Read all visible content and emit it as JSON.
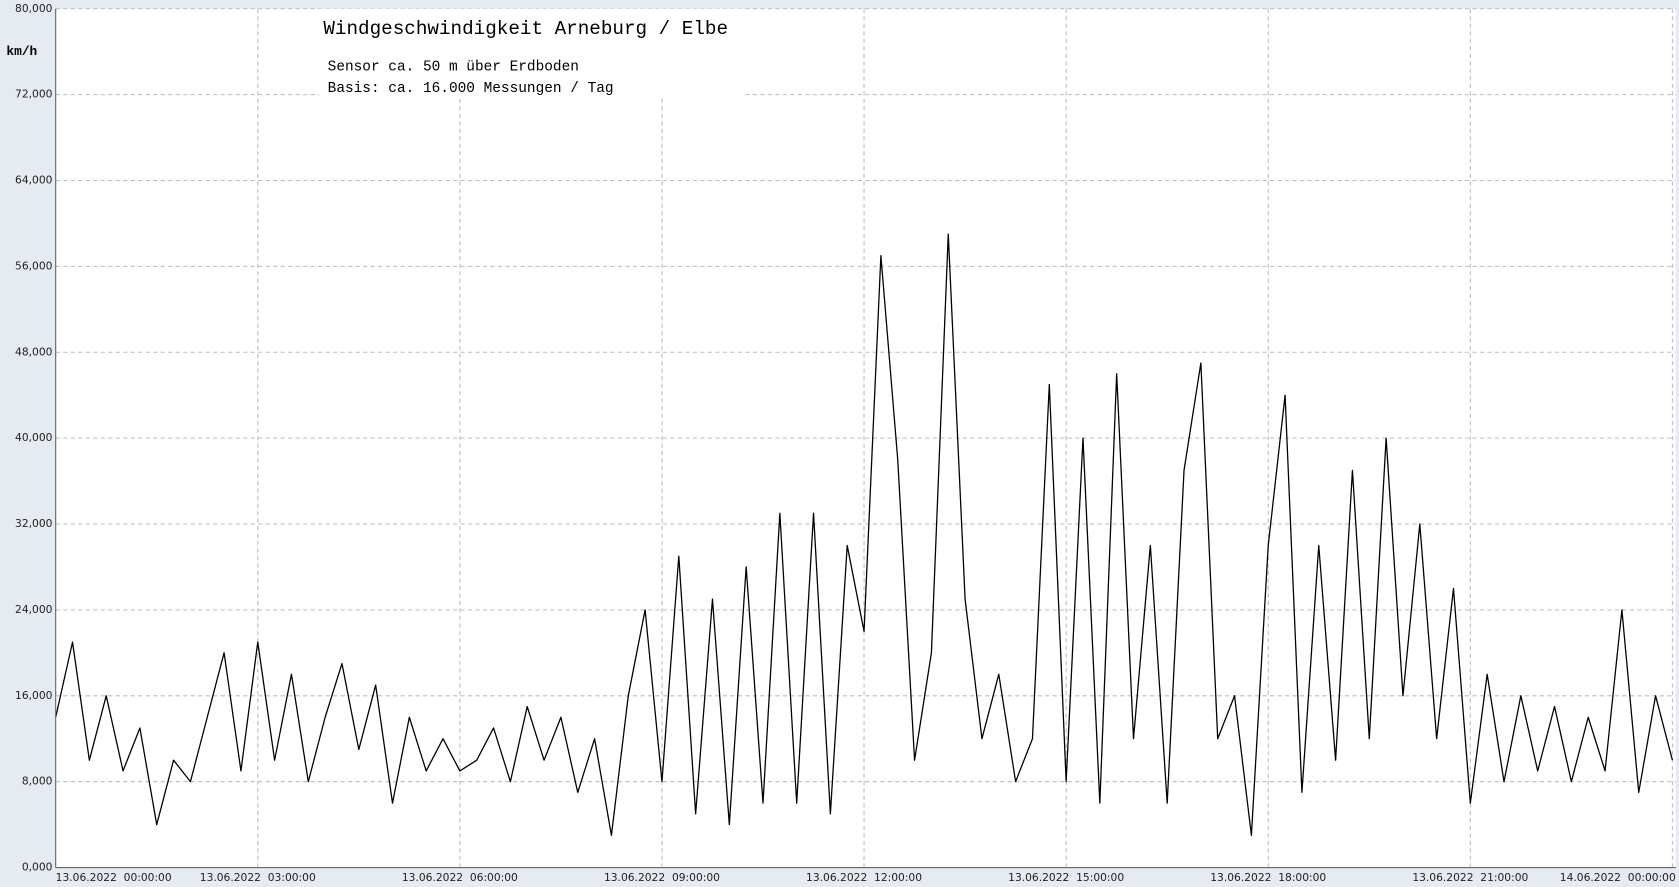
{
  "chart_data": {
    "type": "line",
    "title": "Windgeschwindigkeit  Arneburg / Elbe",
    "subtitle": "Sensor ca. 50 m über Erdboden",
    "annotation": "Basis: ca. 16.000 Messungen / Tag",
    "y_label": "km/h",
    "color": "#000000",
    "grid": true,
    "x": [
      0,
      0.25,
      0.5,
      0.75,
      1,
      1.25,
      1.5,
      1.75,
      2,
      2.25,
      2.5,
      2.75,
      3,
      3.25,
      3.5,
      3.75,
      4,
      4.25,
      4.5,
      4.75,
      5,
      5.25,
      5.5,
      5.75,
      6,
      6.25,
      6.5,
      6.75,
      7,
      7.25,
      7.5,
      7.75,
      8,
      8.25,
      8.5,
      8.75,
      9,
      9.25,
      9.5,
      9.75,
      10,
      10.25,
      10.5,
      10.75,
      11,
      11.25,
      11.5,
      11.75,
      12,
      12.25,
      12.5,
      12.75,
      13,
      13.25,
      13.5,
      13.75,
      14,
      14.25,
      14.5,
      14.75,
      15,
      15.25,
      15.5,
      15.75,
      16,
      16.25,
      16.5,
      16.75,
      17,
      17.25,
      17.5,
      17.75,
      18,
      18.25,
      18.5,
      18.75,
      19,
      19.25,
      19.5,
      19.75,
      20,
      20.25,
      20.5,
      20.75,
      21,
      21.25,
      21.5,
      21.75,
      22,
      22.25,
      22.5,
      22.75,
      23,
      23.25,
      23.5,
      23.75,
      24
    ],
    "values": [
      14,
      21,
      10,
      16,
      9,
      13,
      4,
      10,
      8,
      14,
      20,
      9,
      21,
      10,
      18,
      8,
      14,
      19,
      11,
      17,
      6,
      14,
      9,
      12,
      9,
      10,
      13,
      8,
      15,
      10,
      14,
      7,
      12,
      3,
      16,
      24,
      8,
      29,
      5,
      25,
      4,
      28,
      6,
      33,
      6,
      33,
      5,
      30,
      22,
      57,
      38,
      10,
      20,
      59,
      25,
      12,
      18,
      8,
      12,
      45,
      8,
      40,
      6,
      46,
      12,
      30,
      6,
      37,
      47,
      12,
      16,
      3,
      30,
      44,
      7,
      30,
      10,
      37,
      12,
      40,
      16,
      32,
      12,
      26,
      6,
      18,
      8,
      16,
      9,
      15,
      8,
      14,
      9,
      24,
      7,
      16,
      10
    ],
    "xlim": [
      0,
      24.05
    ],
    "ylim": [
      0,
      80
    ],
    "xticks": [
      {
        "value": 0,
        "label": "13.06.2022  00:00:00"
      },
      {
        "value": 3,
        "label": "13.06.2022  03:00:00"
      },
      {
        "value": 6,
        "label": "13.06.2022  06:00:00"
      },
      {
        "value": 9,
        "label": "13.06.2022  09:00:00"
      },
      {
        "value": 12,
        "label": "13.06.2022  12:00:00"
      },
      {
        "value": 15,
        "label": "13.06.2022  15:00:00"
      },
      {
        "value": 18,
        "label": "13.06.2022  18:00:00"
      },
      {
        "value": 21,
        "label": "13.06.2022  21:00:00"
      },
      {
        "value": 24,
        "label": "14.06.2022  00:00:00"
      }
    ],
    "yticks": [
      {
        "value": 0,
        "label": "0,000"
      },
      {
        "value": 8,
        "label": "8,000"
      },
      {
        "value": 16,
        "label": "16,000"
      },
      {
        "value": 24,
        "label": "24,000"
      },
      {
        "value": 32,
        "label": "32,000"
      },
      {
        "value": 40,
        "label": "40,000"
      },
      {
        "value": 48,
        "label": "48,000"
      },
      {
        "value": 56,
        "label": "56,000"
      },
      {
        "value": 64,
        "label": "64,000"
      },
      {
        "value": 72,
        "label": "72,000"
      },
      {
        "value": 80,
        "label": "80,000"
      }
    ]
  }
}
